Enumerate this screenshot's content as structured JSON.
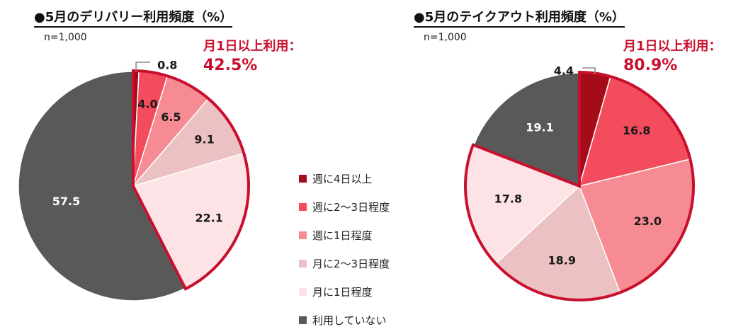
{
  "chart_data": [
    {
      "type": "pie",
      "title": "●5月のデリバリー利用頻度（%）",
      "sample_note": "n=1,000",
      "callout_label": "月1日以上利用：",
      "callout_value": "42.5%",
      "categories": [
        "週に4日以上",
        "週に2〜3日程度",
        "週に1日程度",
        "月に2〜3日程度",
        "月に1日程度",
        "利用していない"
      ],
      "values": [
        0.8,
        4.0,
        6.5,
        9.1,
        22.1,
        57.5
      ],
      "value_labels": [
        "0.8",
        "4.0",
        "6.5",
        "9.1",
        "22.1",
        "57.5"
      ],
      "highlighted_categories": [
        "週に4日以上",
        "週に2〜3日程度",
        "週に1日程度",
        "月に2〜3日程度",
        "月に1日程度"
      ]
    },
    {
      "type": "pie",
      "title": "●5月のテイクアウト利用頻度（%）",
      "sample_note": "n=1,000",
      "callout_label": "月1日以上利用：",
      "callout_value": "80.9%",
      "categories": [
        "週に4日以上",
        "週に2〜3日程度",
        "週に1日程度",
        "月に2〜3日程度",
        "月に1日程度",
        "利用していない"
      ],
      "values": [
        4.4,
        16.8,
        23.0,
        18.9,
        17.8,
        19.1
      ],
      "value_labels": [
        "4.4",
        "16.8",
        "23.0",
        "18.9",
        "17.8",
        "19.1"
      ],
      "highlighted_categories": [
        "週に4日以上",
        "週に2〜3日程度",
        "週に1日程度",
        "月に2〜3日程度",
        "月に1日程度"
      ]
    }
  ],
  "legend": {
    "placement": "center",
    "items": [
      {
        "label": "週に4日以上",
        "color": "#a50c19"
      },
      {
        "label": "週に2〜3日程度",
        "color": "#f24c5d"
      },
      {
        "label": "週に1日程度",
        "color": "#f68b93"
      },
      {
        "label": "月に2〜3日程度",
        "color": "#ecc1c3"
      },
      {
        "label": "月に1日程度",
        "color": "#fde3e5"
      },
      {
        "label": "利用していない",
        "color": "#595959"
      }
    ]
  },
  "colors": {
    "highlight_outline": "#c8102e",
    "callout_text": "#c8102e",
    "label_dark": "#1a1a1a",
    "label_light": "#ffffff"
  }
}
